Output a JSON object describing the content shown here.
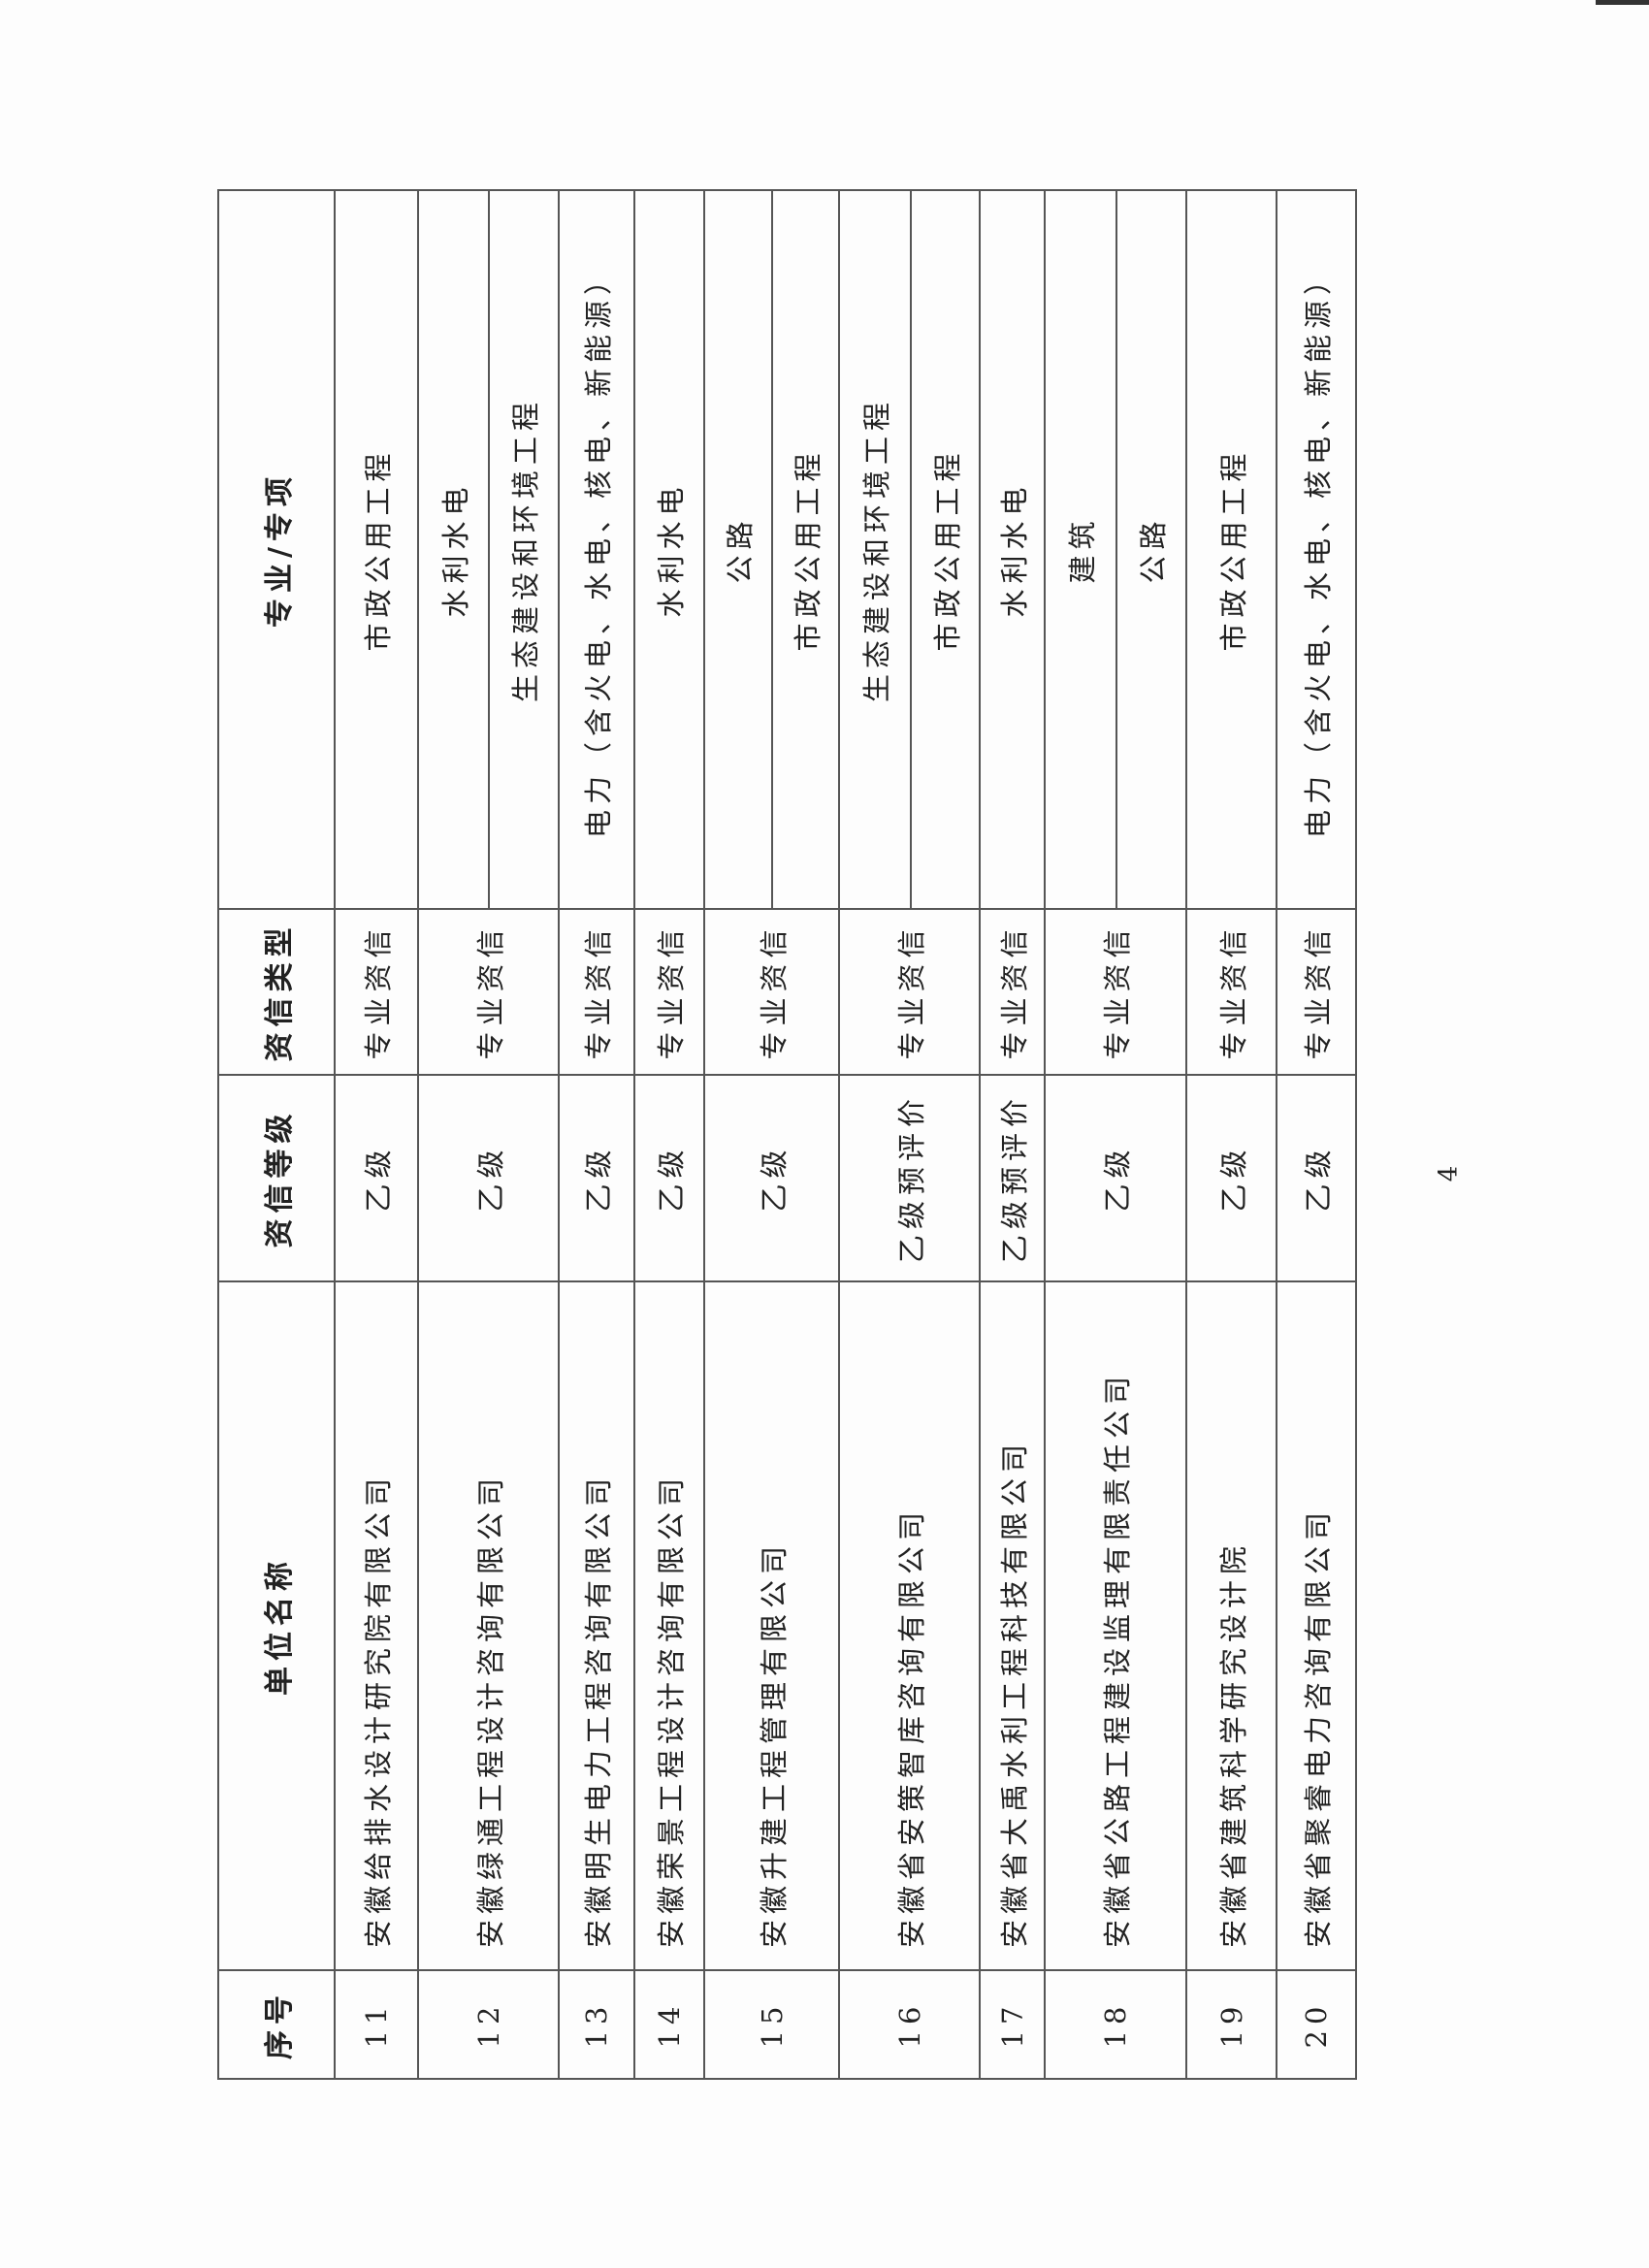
{
  "table": {
    "headers": [
      "序号",
      "单位名称",
      "资信等级",
      "资信类型",
      "专业/专项"
    ],
    "rows": [
      {
        "no": "11",
        "name": "安徽给排水设计研究院有限公司",
        "grade": "乙级",
        "type": "专业资信",
        "specialties": [
          "市政公用工程"
        ]
      },
      {
        "no": "12",
        "name": "安徽绿通工程设计咨询有限公司",
        "grade": "乙级",
        "type": "专业资信",
        "specialties": [
          "水利水电",
          "生态建设和环境工程"
        ]
      },
      {
        "no": "13",
        "name": "安徽明生电力工程咨询有限公司",
        "grade": "乙级",
        "type": "专业资信",
        "specialties": [
          "电力（含火电、水电、核电、新能源）"
        ]
      },
      {
        "no": "14",
        "name": "安徽荣景工程设计咨询有限公司",
        "grade": "乙级",
        "type": "专业资信",
        "specialties": [
          "水利水电"
        ]
      },
      {
        "no": "15",
        "name": "安徽升建工程管理有限公司",
        "grade": "乙级",
        "type": "专业资信",
        "specialties": [
          "公路",
          "市政公用工程"
        ]
      },
      {
        "no": "16",
        "name": "安徽省安策智库咨询有限公司",
        "grade": "乙级预评价",
        "type": "专业资信",
        "specialties": [
          "生态建设和环境工程",
          "市政公用工程"
        ]
      },
      {
        "no": "17",
        "name": "安徽省大禹水利工程科技有限公司",
        "grade": "乙级预评价",
        "type": "专业资信",
        "specialties": [
          "水利水电"
        ]
      },
      {
        "no": "18",
        "name": "安徽省公路工程建设监理有限责任公司",
        "grade": "乙级",
        "type": "专业资信",
        "specialties": [
          "建筑",
          "公路"
        ]
      },
      {
        "no": "19",
        "name": "安徽省建筑科学研究设计院",
        "grade": "乙级",
        "type": "专业资信",
        "specialties": [
          "市政公用工程"
        ]
      },
      {
        "no": "20",
        "name": "安徽省聚睿电力咨询有限公司",
        "grade": "乙级",
        "type": "专业资信",
        "specialties": [
          "电力（含火电、水电、核电、新能源）"
        ]
      }
    ]
  },
  "page_number": "4"
}
